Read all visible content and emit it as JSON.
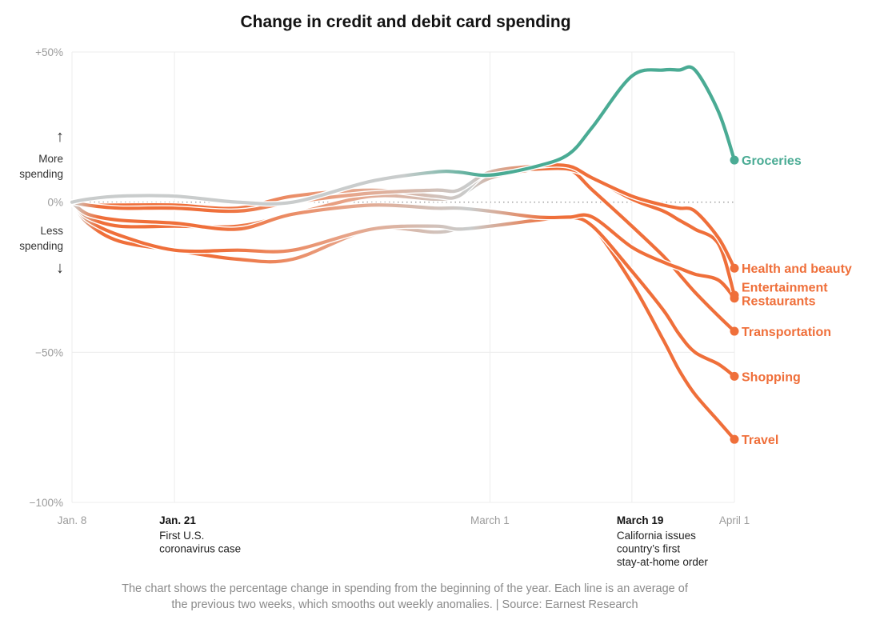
{
  "title": "Change in credit and debit card spending",
  "note_line1": "The chart shows the percentage change in spending from the beginning of the year. Each line is an average of",
  "note_line2": "the previous two weeks, which smooths out weekly anomalies. | Source: Earnest Research",
  "colors": {
    "groceries": "#4aab94",
    "decline": "#ef6f3a",
    "neutral": "#c9cccc",
    "grid": "#ececec",
    "zero_line": "#9b9b9b"
  },
  "chart_data": {
    "type": "line",
    "title": "Change in credit and debit card spending",
    "ylabel_up_arrow": "↑",
    "ylabel_up_1": "More",
    "ylabel_up_2": "spending",
    "ylabel_down_1": "Less",
    "ylabel_down_2": "spending",
    "ylabel_down_arrow": "↓",
    "ylim": [
      -100,
      50
    ],
    "yticks": [
      {
        "value": 50,
        "label": "+50%"
      },
      {
        "value": 0,
        "label": "0%"
      },
      {
        "value": -50,
        "label": "−50%"
      },
      {
        "value": -100,
        "label": "−100%"
      }
    ],
    "xlim": [
      0,
      84
    ],
    "xticks": [
      {
        "day": 0,
        "label": "Jan. 8",
        "bold": false
      },
      {
        "day": 13,
        "label": "Jan. 21",
        "bold": true
      },
      {
        "day": 53,
        "label": "March 1",
        "bold": false
      },
      {
        "day": 71,
        "label": "March 19",
        "bold": true
      },
      {
        "day": 84,
        "label": "April 1",
        "bold": false
      }
    ],
    "annotations": [
      {
        "day": 13,
        "lines": [
          "First U.S.",
          "coronavirus case"
        ]
      },
      {
        "day": 71,
        "lines": [
          "California issues",
          "country’s first",
          "stay-at-home order"
        ]
      }
    ],
    "grid": true,
    "legend": "direct labels at line ends",
    "x": [
      0,
      2,
      6,
      13,
      21,
      28,
      38,
      46,
      49,
      53,
      59,
      63,
      66,
      71,
      75,
      77,
      79,
      82,
      84
    ],
    "series": [
      {
        "name": "Groceries",
        "color": "#4aab94",
        "values": [
          0,
          1,
          2,
          2,
          0,
          0,
          7,
          10,
          10,
          9,
          12,
          16,
          25,
          42,
          44,
          44,
          44,
          30,
          14
        ]
      },
      {
        "name": "Health and beauty",
        "color": "#ef6f3a",
        "values": [
          0,
          -1,
          -2,
          -2,
          -3,
          0,
          3,
          4,
          4,
          10,
          12,
          12,
          8,
          2,
          -1,
          -2,
          -3,
          -12,
          -22
        ]
      },
      {
        "name": "Entertainment",
        "color": "#ef6f3a",
        "values": [
          0,
          -1,
          -1,
          -1,
          -2,
          2,
          4,
          2,
          2,
          10,
          11,
          11,
          8,
          1,
          -3,
          -6,
          -9,
          -14,
          -31
        ]
      },
      {
        "name": "Restaurants",
        "color": "#ef6f3a",
        "values": [
          0,
          -4,
          -6,
          -7,
          -9,
          -4,
          -1,
          -2,
          -2,
          -3,
          -5,
          -5,
          -5,
          -15,
          -20,
          -22,
          -24,
          -26,
          -32
        ]
      },
      {
        "name": "Transportation",
        "color": "#ef6f3a",
        "values": [
          0,
          -5,
          -8,
          -8,
          -8,
          -4,
          2,
          1,
          2,
          8,
          11,
          11,
          4,
          -8,
          -18,
          -24,
          -30,
          -38,
          -43
        ]
      },
      {
        "name": "Shopping",
        "color": "#ef6f3a",
        "values": [
          0,
          -6,
          -11,
          -16,
          -16,
          -16,
          -9,
          -8,
          -9,
          -8,
          -6,
          -5,
          -8,
          -23,
          -36,
          -44,
          -50,
          -54,
          -58
        ]
      },
      {
        "name": "Travel",
        "color": "#ef6f3a",
        "values": [
          0,
          -7,
          -13,
          -16,
          -19,
          -19,
          -9,
          -10,
          -9,
          -8,
          -6,
          -5,
          -8,
          -27,
          -46,
          -56,
          -64,
          -73,
          -79
        ]
      }
    ],
    "end_labels": [
      {
        "series": "Groceries",
        "lines": [
          "Groceries"
        ],
        "color": "#4aab94",
        "label_y": 14
      },
      {
        "series": "Health and beauty",
        "lines": [
          "Health and beauty"
        ],
        "color": "#ef6f3a",
        "label_y": -22
      },
      {
        "series": "Entertainment",
        "lines": [
          "Entertainment",
          "Restaurants"
        ],
        "color": "#ef6f3a",
        "label_y": -30.5
      },
      {
        "series": "Transportation",
        "lines": [
          "Transportation"
        ],
        "color": "#ef6f3a",
        "label_y": -43
      },
      {
        "series": "Shopping",
        "lines": [
          "Shopping"
        ],
        "color": "#ef6f3a",
        "label_y": -58
      },
      {
        "series": "Travel",
        "lines": [
          "Travel"
        ],
        "color": "#ef6f3a",
        "label_y": -79
      }
    ]
  }
}
